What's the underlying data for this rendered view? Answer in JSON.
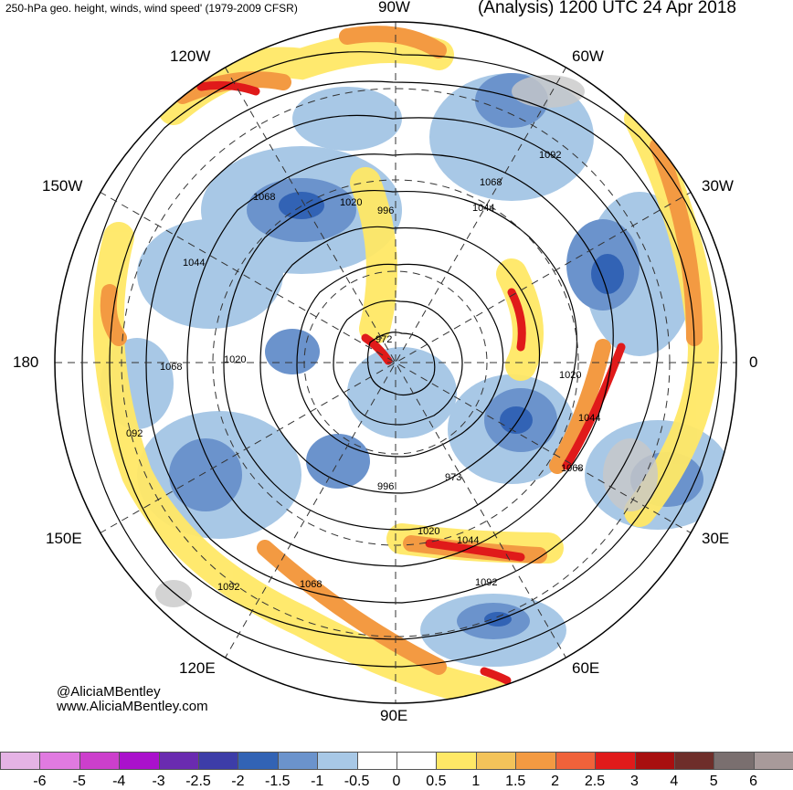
{
  "header": {
    "title_left": "250-hPa geo. height, winds, wind speed' (1979-2009 CFSR)",
    "title_right": "(Analysis) 1200 UTC 24 Apr 2018"
  },
  "longitude_labels": {
    "90w": "90W",
    "120w": "120W",
    "60w": "60W",
    "150w": "150W",
    "30w": "30W",
    "180": "180",
    "0": "0",
    "150e": "150E",
    "30e": "30E",
    "120e": "120E",
    "60e": "60E",
    "90e": "90E"
  },
  "contour_labels": [
    {
      "id": "c1",
      "text": "1092"
    },
    {
      "id": "c2",
      "text": "1068"
    },
    {
      "id": "c3",
      "text": "1044"
    },
    {
      "id": "c4",
      "text": "1068"
    },
    {
      "id": "c5",
      "text": "1020"
    },
    {
      "id": "c6",
      "text": "996"
    },
    {
      "id": "c7",
      "text": "1044"
    },
    {
      "id": "c8",
      "text": "1020"
    },
    {
      "id": "c9",
      "text": "972"
    },
    {
      "id": "c10",
      "text": "1068"
    },
    {
      "id": "c11",
      "text": "1020"
    },
    {
      "id": "c12",
      "text": "1044"
    },
    {
      "id": "c13",
      "text": "1068"
    },
    {
      "id": "c14",
      "text": "092"
    },
    {
      "id": "c15",
      "text": "973"
    },
    {
      "id": "c16",
      "text": "996"
    },
    {
      "id": "c17",
      "text": "1020"
    },
    {
      "id": "c18",
      "text": "1044"
    },
    {
      "id": "c19",
      "text": "1092"
    },
    {
      "id": "c20",
      "text": "1068"
    },
    {
      "id": "c21",
      "text": "1092"
    }
  ],
  "credits": {
    "handle": "@AliciaMBentley",
    "website": "www.AliciaMBentley.com"
  },
  "colorbar": {
    "colors": [
      "#e5b3e5",
      "#e07ae0",
      "#cc3fcc",
      "#aa11cc",
      "#6a2bb0",
      "#3d3da8",
      "#3263b5",
      "#6b93cc",
      "#a8c8e6",
      "#ffffff",
      "#ffffff",
      "#ffe866",
      "#f3c35a",
      "#f39a42",
      "#f0623a",
      "#e01a1a",
      "#a80f0f",
      "#6e2e2a",
      "#7a6f6f",
      "#a89a9a"
    ],
    "ticks": [
      "-6",
      "-5",
      "-4",
      "-3",
      "-2.5",
      "-2",
      "-1.5",
      "-1",
      "-0.5",
      "0",
      "0.5",
      "1",
      "1.5",
      "2",
      "2.5",
      "3",
      "4",
      "5",
      "6"
    ]
  }
}
